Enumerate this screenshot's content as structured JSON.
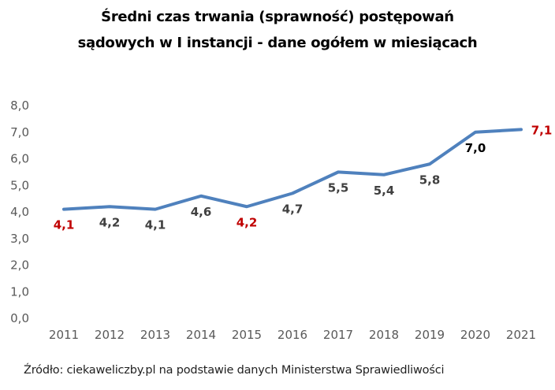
{
  "chart_data": {
    "type": "line",
    "title": [
      "Średni czas trwania (sprawność) postępowań",
      "sądowych w I instancji - dane ogółem w miesiącach"
    ],
    "categories": [
      "2011",
      "2012",
      "2013",
      "2014",
      "2015",
      "2016",
      "2017",
      "2018",
      "2019",
      "2020",
      "2021"
    ],
    "values": [
      4.1,
      4.2,
      4.1,
      4.6,
      4.2,
      4.7,
      5.5,
      5.4,
      5.8,
      7.0,
      7.1
    ],
    "data_labels": [
      "4,1",
      "4,2",
      "4,1",
      "4,6",
      "4,2",
      "4,7",
      "5,5",
      "5,4",
      "5,8",
      "7,0",
      "7,1"
    ],
    "label_colors": [
      "#c00000",
      "#404040",
      "#404040",
      "#404040",
      "#c00000",
      "#404040",
      "#404040",
      "#404040",
      "#404040",
      "#000000",
      "#c00000"
    ],
    "yticks": [
      "0,0",
      "1,0",
      "2,0",
      "3,0",
      "4,0",
      "5,0",
      "6,0",
      "7,0",
      "8,0"
    ],
    "ylim": [
      0,
      8
    ],
    "grid": false,
    "line_color": "#4f81bd",
    "xlabel": "",
    "ylabel": ""
  },
  "source": "Źródło: ciekaweliczby.pl na podstawie danych Ministerstwa Sprawiedliwości"
}
